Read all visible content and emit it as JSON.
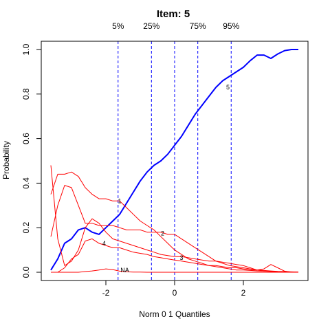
{
  "chart_data": {
    "type": "line",
    "title": "Item:  5",
    "xlabel": "Norm 0 1 Quantiles",
    "ylabel": "Probability",
    "xlim": [
      -3.6,
      3.6
    ],
    "ylim": [
      0,
      1
    ],
    "x_ticks": [
      -2,
      0,
      2
    ],
    "y_ticks": [
      0.0,
      0.2,
      0.4,
      0.6,
      0.8,
      1.0
    ],
    "x_tick_labels": [
      "-2",
      "0",
      "2"
    ],
    "y_tick_labels": [
      "0.0",
      "0.2",
      "0.4",
      "0.6",
      "0.8",
      "1.0"
    ],
    "quantile_lines": [
      {
        "label": "5%",
        "x": -1.645
      },
      {
        "label": "25%",
        "x": -0.674
      },
      {
        "label": "",
        "x": 0.0
      },
      {
        "label": "75%",
        "x": 0.674
      },
      {
        "label": "95%",
        "x": 1.645
      }
    ],
    "quantile_color": "#0000ff",
    "grid": false,
    "series": [
      {
        "name": "5",
        "color": "#0000ff",
        "width": 2,
        "label_at": [
          1.55,
          0.83
        ],
        "x": [
          -3.6,
          -3.4,
          -3.2,
          -3.0,
          -2.8,
          -2.6,
          -2.4,
          -2.2,
          -2.0,
          -1.8,
          -1.6,
          -1.4,
          -1.2,
          -1.0,
          -0.8,
          -0.6,
          -0.4,
          -0.2,
          0.0,
          0.2,
          0.4,
          0.6,
          0.8,
          1.0,
          1.2,
          1.4,
          1.6,
          1.8,
          2.0,
          2.2,
          2.4,
          2.6,
          2.8,
          3.0,
          3.2,
          3.4,
          3.6
        ],
        "y": [
          0.01,
          0.06,
          0.13,
          0.15,
          0.19,
          0.2,
          0.18,
          0.17,
          0.2,
          0.23,
          0.26,
          0.31,
          0.36,
          0.41,
          0.45,
          0.48,
          0.5,
          0.53,
          0.57,
          0.61,
          0.66,
          0.71,
          0.75,
          0.79,
          0.83,
          0.86,
          0.88,
          0.9,
          0.92,
          0.95,
          0.975,
          0.975,
          0.96,
          0.98,
          0.995,
          1.0,
          1.0
        ]
      },
      {
        "name": "1",
        "color": "#ff0000",
        "width": 1,
        "label_at": [
          -1.6,
          0.32
        ],
        "x": [
          -3.6,
          -3.4,
          -3.2,
          -3.0,
          -2.8,
          -2.6,
          -2.4,
          -2.2,
          -2.0,
          -1.8,
          -1.6,
          -1.4,
          -1.2,
          -1.0,
          -0.8,
          -0.6,
          -0.4,
          -0.2,
          0.0,
          0.2,
          0.4,
          0.6,
          0.8,
          1.0,
          1.2,
          1.4,
          1.6,
          1.8,
          2.0,
          2.2,
          2.4,
          2.6,
          2.8,
          3.0,
          3.2,
          3.4,
          3.6
        ],
        "y": [
          0.35,
          0.44,
          0.44,
          0.45,
          0.43,
          0.38,
          0.35,
          0.33,
          0.33,
          0.32,
          0.32,
          0.29,
          0.26,
          0.23,
          0.21,
          0.19,
          0.16,
          0.13,
          0.1,
          0.08,
          0.06,
          0.05,
          0.04,
          0.03,
          0.025,
          0.02,
          0.015,
          0.01,
          0.01,
          0.008,
          0.006,
          0.005,
          0.004,
          0.003,
          0.002,
          0.001,
          0.001
        ]
      },
      {
        "name": "2",
        "color": "#ff0000",
        "width": 1,
        "label_at": [
          -0.35,
          0.175
        ],
        "x": [
          -3.6,
          -3.4,
          -3.2,
          -3.0,
          -2.8,
          -2.6,
          -2.4,
          -2.2,
          -2.0,
          -1.8,
          -1.6,
          -1.4,
          -1.2,
          -1.0,
          -0.8,
          -0.6,
          -0.4,
          -0.2,
          0.0,
          0.2,
          0.4,
          0.6,
          0.8,
          1.0,
          1.2,
          1.4,
          1.6,
          1.8,
          2.0,
          2.2,
          2.4,
          2.6,
          2.8,
          3.0,
          3.2,
          3.4,
          3.6
        ],
        "y": [
          0.16,
          0.3,
          0.39,
          0.38,
          0.3,
          0.22,
          0.22,
          0.21,
          0.21,
          0.21,
          0.2,
          0.19,
          0.19,
          0.19,
          0.18,
          0.18,
          0.18,
          0.17,
          0.17,
          0.15,
          0.13,
          0.11,
          0.09,
          0.07,
          0.05,
          0.04,
          0.03,
          0.025,
          0.02,
          0.015,
          0.01,
          0.008,
          0.006,
          0.004,
          0.003,
          0.002,
          0.001
        ]
      },
      {
        "name": "4",
        "color": "#ff0000",
        "width": 1,
        "label_at": [
          -2.05,
          0.13
        ],
        "x": [
          -3.6,
          -3.4,
          -3.2,
          -3.0,
          -2.8,
          -2.6,
          -2.4,
          -2.2,
          -2.0,
          -1.8,
          -1.6,
          -1.4,
          -1.2,
          -1.0,
          -0.8,
          -0.6,
          -0.4,
          -0.2,
          0.0,
          0.2,
          0.4,
          0.6,
          0.8,
          1.0,
          1.2,
          1.4,
          1.6,
          1.8,
          2.0,
          2.2,
          2.4,
          2.6,
          2.8,
          3.0,
          3.2,
          3.4,
          3.6
        ],
        "y": [
          0.48,
          0.15,
          0.03,
          0.05,
          0.1,
          0.2,
          0.24,
          0.22,
          0.18,
          0.15,
          0.14,
          0.13,
          0.12,
          0.11,
          0.1,
          0.09,
          0.08,
          0.075,
          0.07,
          0.07,
          0.065,
          0.06,
          0.055,
          0.05,
          0.05,
          0.045,
          0.04,
          0.035,
          0.03,
          0.02,
          0.01,
          0.005,
          0.003,
          0.002,
          0.001,
          0.001,
          0.001
        ]
      },
      {
        "name": "3",
        "color": "#ff0000",
        "width": 1,
        "label_at": [
          0.2,
          0.065
        ],
        "x": [
          -3.6,
          -3.4,
          -3.2,
          -3.0,
          -2.8,
          -2.6,
          -2.4,
          -2.2,
          -2.0,
          -1.8,
          -1.6,
          -1.4,
          -1.2,
          -1.0,
          -0.8,
          -0.6,
          -0.4,
          -0.2,
          0.0,
          0.2,
          0.4,
          0.6,
          0.8,
          1.0,
          1.2,
          1.4,
          1.6,
          1.8,
          2.0,
          2.2,
          2.4,
          2.6,
          2.8,
          3.0,
          3.2,
          3.4,
          3.6
        ],
        "y": [
          0.0,
          0.0,
          0.02,
          0.06,
          0.08,
          0.14,
          0.15,
          0.13,
          0.12,
          0.11,
          0.11,
          0.1,
          0.09,
          0.085,
          0.08,
          0.07,
          0.065,
          0.06,
          0.055,
          0.05,
          0.045,
          0.04,
          0.035,
          0.03,
          0.03,
          0.025,
          0.02,
          0.02,
          0.015,
          0.01,
          0.01,
          0.015,
          0.035,
          0.02,
          0.005,
          0.001,
          0.0
        ]
      },
      {
        "name": "NA",
        "color": "#ff0000",
        "width": 1,
        "label_at": [
          -1.45,
          0.01
        ],
        "x": [
          -3.6,
          -3.4,
          -3.2,
          -3.0,
          -2.8,
          -2.6,
          -2.4,
          -2.2,
          -2.0,
          -1.8,
          -1.6,
          -1.4,
          -1.2,
          -1.0,
          -0.8,
          -0.6,
          -0.4,
          -0.2,
          0.0,
          0.2,
          0.4,
          0.6,
          0.8,
          1.0,
          1.2,
          1.4,
          1.6,
          1.8,
          2.0,
          2.2,
          2.4,
          2.6,
          2.8,
          3.0,
          3.2,
          3.4,
          3.6
        ],
        "y": [
          0.0,
          0.0,
          0.0,
          0.0,
          0.0,
          0.003,
          0.006,
          0.01,
          0.015,
          0.012,
          0.005,
          0.002,
          0.001,
          0.001,
          0.0,
          0.0,
          0.0,
          0.0,
          0.0,
          0.0,
          0.0,
          0.0,
          0.0,
          0.0,
          0.0,
          0.0,
          0.0,
          0.0,
          0.0,
          0.0,
          0.0,
          0.0,
          0.0,
          0.0,
          0.0,
          0.0,
          0.0
        ]
      }
    ]
  }
}
